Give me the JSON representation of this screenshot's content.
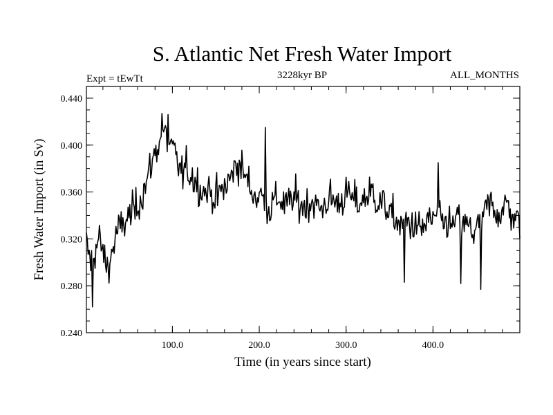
{
  "chart_data": {
    "type": "line",
    "title": "S. Atlantic Net Fresh Water Import",
    "subtitle_left": "Expt = tEwTt",
    "subtitle_center": "3228kyr BP",
    "subtitle_right": "ALL_MONTHS",
    "xlabel": "Time (in years since start)",
    "ylabel": "Fresh Water Import (in Sv)",
    "xlim": [
      1,
      500
    ],
    "ylim": [
      0.24,
      0.45
    ],
    "xticks": [
      100,
      200,
      300,
      400
    ],
    "xtick_labels": [
      "100.0",
      "200.0",
      "300.0",
      "400.0"
    ],
    "yticks": [
      0.24,
      0.28,
      0.32,
      0.36,
      0.4,
      0.44
    ],
    "ytick_labels": [
      "0.240",
      "0.280",
      "0.320",
      "0.360",
      "0.400",
      "0.440"
    ],
    "series": [
      {
        "name": "S. Atlantic Net Fresh Water Import",
        "x_start": 1,
        "x_step": 5,
        "values": [
          0.315,
          0.3,
          0.31,
          0.32,
          0.305,
          0.295,
          0.31,
          0.325,
          0.33,
          0.335,
          0.34,
          0.345,
          0.35,
          0.36,
          0.37,
          0.385,
          0.395,
          0.405,
          0.41,
          0.4,
          0.395,
          0.385,
          0.375,
          0.38,
          0.375,
          0.37,
          0.365,
          0.36,
          0.362,
          0.358,
          0.355,
          0.36,
          0.365,
          0.37,
          0.38,
          0.385,
          0.378,
          0.37,
          0.362,
          0.355,
          0.358,
          0.352,
          0.345,
          0.35,
          0.355,
          0.352,
          0.348,
          0.352,
          0.355,
          0.35,
          0.348,
          0.35,
          0.352,
          0.348,
          0.345,
          0.35,
          0.355,
          0.352,
          0.35,
          0.355,
          0.358,
          0.355,
          0.352,
          0.35,
          0.355,
          0.358,
          0.36,
          0.352,
          0.35,
          0.348,
          0.34,
          0.338,
          0.332,
          0.33,
          0.335,
          0.332,
          0.33,
          0.328,
          0.332,
          0.335,
          0.338,
          0.335,
          0.332,
          0.335,
          0.33,
          0.335,
          0.338,
          0.332,
          0.33,
          0.326,
          0.33,
          0.335,
          0.345,
          0.35,
          0.345,
          0.342,
          0.345,
          0.35,
          0.34,
          0.335
        ],
        "extremes": [
          {
            "x": 8,
            "y": 0.262
          },
          {
            "x": 88,
            "y": 0.427
          },
          {
            "x": 95,
            "y": 0.426
          },
          {
            "x": 207,
            "y": 0.415
          },
          {
            "x": 367,
            "y": 0.283
          },
          {
            "x": 455,
            "y": 0.277
          },
          {
            "x": 432,
            "y": 0.282
          },
          {
            "x": 406,
            "y": 0.385
          }
        ]
      }
    ]
  }
}
